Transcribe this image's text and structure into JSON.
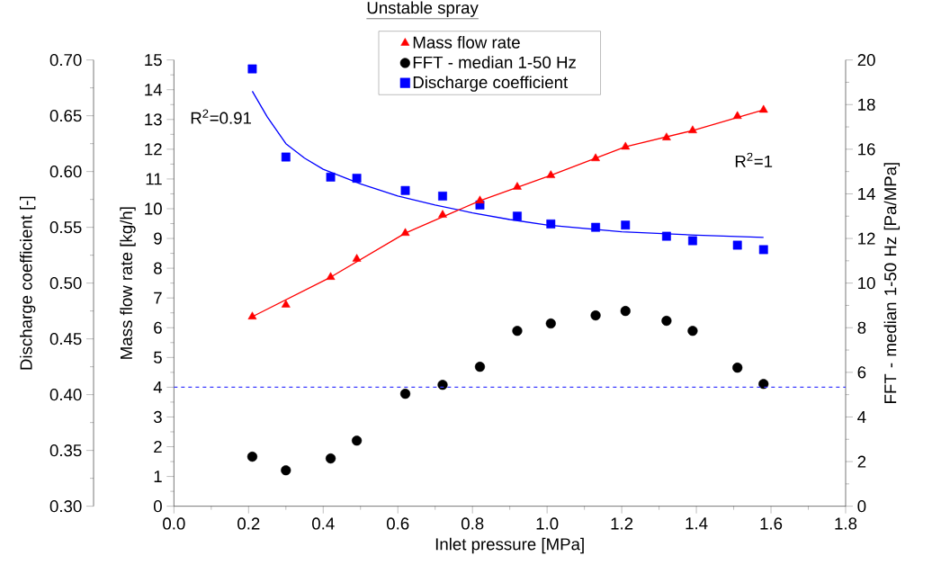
{
  "chart_data": {
    "type": "scatter",
    "title": "Unstable spray",
    "xlabel": "Inlet pressure [MPa]",
    "ylabel": "Mass flow rate [kg/h]",
    "y2label": "FFT - median 1-50 Hz [Pa/MPa]",
    "y3label": "Discharge coefficient [-]",
    "x": [
      0.21,
      0.3,
      0.42,
      0.49,
      0.62,
      0.72,
      0.82,
      0.92,
      1.01,
      1.13,
      1.21,
      1.32,
      1.39,
      1.51,
      1.58
    ],
    "series": [
      {
        "name": "Mass flow rate",
        "color": "#ff0000",
        "marker": "triangle",
        "axis": "y",
        "values": [
          6.37,
          6.77,
          7.7,
          8.31,
          9.18,
          9.79,
          10.27,
          10.73,
          11.12,
          11.69,
          12.08,
          12.39,
          12.63,
          13.11,
          13.32
        ]
      },
      {
        "name": "FFT - median 1-50 Hz",
        "color": "#000000",
        "marker": "circle",
        "axis": "y2",
        "values": [
          2.22,
          1.61,
          2.14,
          2.94,
          5.04,
          5.44,
          6.25,
          7.86,
          8.19,
          8.55,
          8.75,
          8.31,
          7.86,
          6.21,
          5.48
        ]
      },
      {
        "name": "Discharge coefficient",
        "color": "#0000ff",
        "marker": "square",
        "axis": "y3",
        "values": [
          0.692,
          0.613,
          0.595,
          0.594,
          0.583,
          0.578,
          0.57,
          0.56,
          0.553,
          0.55,
          0.552,
          0.542,
          0.538,
          0.534,
          0.53
        ]
      },
      {
        "type": "line",
        "color": "#ff0000",
        "marker": "none",
        "axis": "y",
        "x": [
          0.21,
          0.42,
          0.62,
          0.82,
          1.01,
          1.21,
          1.39,
          1.58
        ],
        "values": [
          6.37,
          7.7,
          9.18,
          10.27,
          11.12,
          12.08,
          12.63,
          13.32
        ]
      },
      {
        "type": "line",
        "color": "#0000ff",
        "marker": "none",
        "axis": "y3",
        "x": [
          0.21,
          0.25,
          0.3,
          0.35,
          0.4,
          0.5,
          0.6,
          0.7,
          0.8,
          0.9,
          1.0,
          1.2,
          1.4,
          1.58
        ],
        "values": [
          0.672,
          0.649,
          0.625,
          0.612,
          0.602,
          0.589,
          0.578,
          0.57,
          0.563,
          0.557,
          0.552,
          0.546,
          0.543,
          0.541
        ]
      }
    ],
    "xlim": [
      0,
      1.8
    ],
    "xticks": [
      {
        "value": 0,
        "label": "0.0"
      },
      0.2,
      0.4,
      0.6,
      0.8,
      {
        "value": 1,
        "label": "1.0"
      },
      1.2,
      1.4,
      1.6,
      1.8
    ],
    "ylim": [
      0,
      15
    ],
    "yticks": [
      0,
      1,
      2,
      3,
      4,
      5,
      6,
      7,
      8,
      9,
      10,
      11,
      12,
      13,
      14,
      15
    ],
    "y2lim": [
      0,
      20
    ],
    "y2ticks": [
      0,
      2,
      4,
      6,
      8,
      10,
      12,
      14,
      16,
      18,
      20
    ],
    "y3lim": [
      0.3,
      0.7
    ],
    "y3ticks": [
      {
        "value": 0.3,
        "label": "0.30"
      },
      0.35,
      {
        "value": 0.4,
        "label": "0.40"
      },
      0.45,
      {
        "value": 0.5,
        "label": "0.50"
      },
      0.55,
      {
        "value": 0.6,
        "label": "0.60"
      },
      0.65,
      {
        "value": 0.7,
        "label": "0.70"
      }
    ],
    "ref_lines": [
      {
        "axis": "y",
        "value": 4,
        "label": null,
        "color": "#3c3cff",
        "line_style": "dashed"
      }
    ],
    "annotations": [
      "R$^{2}$=0.91",
      "R$^{2}$=1"
    ],
    "legend": "top",
    "grid": false
  }
}
